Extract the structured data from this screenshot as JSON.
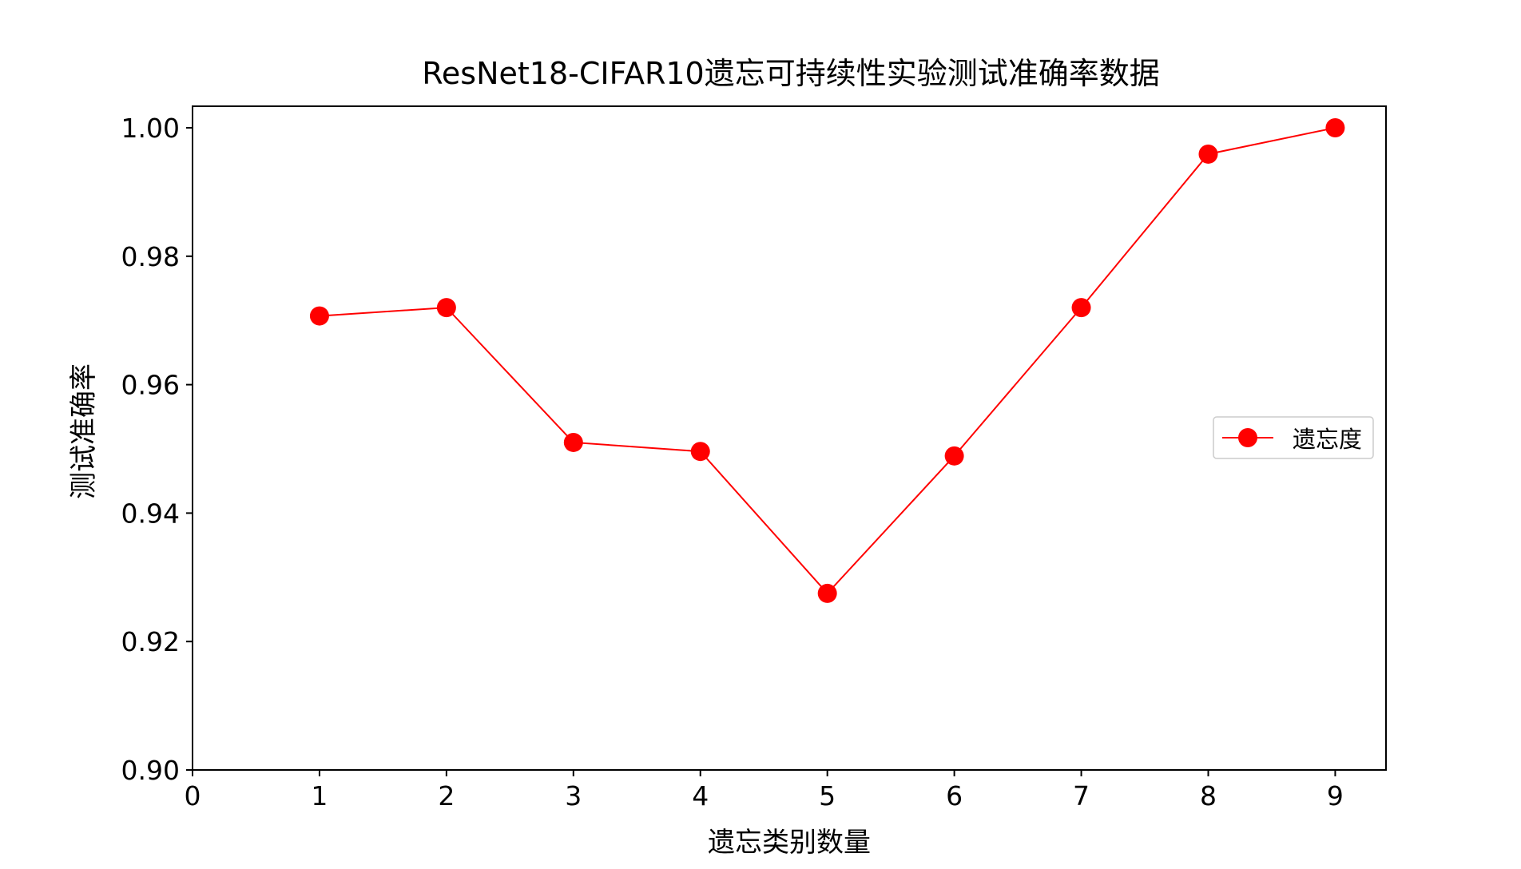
{
  "chart_data": {
    "type": "line",
    "title": "ResNet18-CIFAR10遗忘可持续性实验测试准确率数据",
    "xlabel": "遗忘类别数量",
    "ylabel": "测试准确率",
    "xlim": [
      0,
      9.4
    ],
    "ylim": [
      0.9,
      1.0035
    ],
    "x_ticks": [
      0,
      1,
      2,
      3,
      4,
      5,
      6,
      7,
      8,
      9
    ],
    "y_ticks": [
      0.9,
      0.92,
      0.94,
      0.96,
      0.98,
      1.0
    ],
    "y_tick_labels": [
      "0.90",
      "0.92",
      "0.94",
      "0.96",
      "0.98",
      "1.00"
    ],
    "grid": false,
    "legend_position": "center-right",
    "series": [
      {
        "name": "遗忘度",
        "color": "#ff0000",
        "marker": "circle",
        "x": [
          1,
          2,
          3,
          4,
          5,
          6,
          7,
          8,
          9
        ],
        "y": [
          0.9707,
          0.972,
          0.951,
          0.9496,
          0.9275,
          0.9489,
          0.972,
          0.9959,
          1.0
        ]
      }
    ]
  }
}
